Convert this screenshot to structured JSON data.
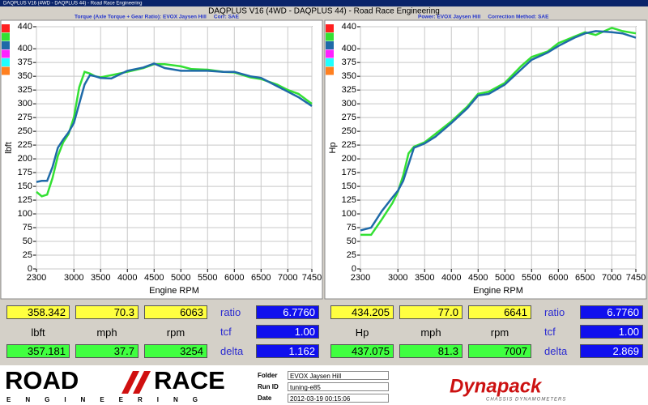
{
  "window": {
    "title": "DAQPLUS V16 (4WD - DAQPLUS 44) - Road Race Engineering"
  },
  "header": {
    "title": "DAQPLUS V16 (4WD - DAQPLUS 44) - Road Race Engineering",
    "left_info": "Torque (Axle Torque + Gear Ratio): EVOX Jaysen Hill     Corr: SAE",
    "right_info": "Power: EVOX Jaysen Hill     Correction Method: SAE"
  },
  "chart_data": [
    {
      "type": "line",
      "ylabel": "lbft",
      "xlabel": "Engine RPM",
      "x": [
        2300,
        2400,
        2500,
        2600,
        2700,
        2800,
        2900,
        3000,
        3100,
        3200,
        3300,
        3400,
        3500,
        3700,
        4000,
        4300,
        4500,
        4700,
        5000,
        5200,
        5500,
        5800,
        6000,
        6300,
        6500,
        6800,
        7000,
        7200,
        7450
      ],
      "series": [
        {
          "color": "#33e033",
          "values": [
            140,
            132,
            135,
            165,
            205,
            230,
            245,
            275,
            330,
            358,
            355,
            350,
            348,
            352,
            358,
            365,
            372,
            372,
            368,
            363,
            362,
            358,
            357,
            348,
            345,
            335,
            325,
            318,
            300
          ]
        },
        {
          "color": "#1f6aa8",
          "values": [
            158,
            160,
            160,
            185,
            220,
            235,
            248,
            265,
            300,
            335,
            352,
            350,
            347,
            346,
            360,
            366,
            373,
            365,
            360,
            360,
            360,
            358,
            358,
            350,
            347,
            332,
            322,
            312,
            296
          ]
        }
      ],
      "xlim": [
        2300,
        7450
      ],
      "ylim": [
        0,
        440
      ],
      "xticks": [
        2300,
        3000,
        3500,
        4000,
        4500,
        5000,
        5500,
        6000,
        6500,
        7000,
        7450
      ],
      "yticks": [
        0,
        25,
        50,
        75,
        100,
        125,
        150,
        175,
        200,
        225,
        250,
        275,
        300,
        325,
        350,
        375,
        400,
        440
      ],
      "grid": true
    },
    {
      "type": "line",
      "ylabel": "Hp",
      "xlabel": "Engine RPM",
      "x": [
        2300,
        2500,
        2700,
        2900,
        3000,
        3100,
        3200,
        3300,
        3500,
        3700,
        4000,
        4300,
        4500,
        4700,
        5000,
        5300,
        5500,
        5800,
        6000,
        6300,
        6500,
        6700,
        7000,
        7200,
        7450
      ],
      "series": [
        {
          "color": "#33e033",
          "values": [
            62,
            62,
            90,
            120,
            140,
            170,
            210,
            222,
            230,
            245,
            268,
            295,
            318,
            322,
            338,
            368,
            385,
            395,
            410,
            422,
            430,
            425,
            438,
            432,
            428
          ]
        },
        {
          "color": "#1f6aa8",
          "values": [
            70,
            75,
            105,
            130,
            142,
            160,
            190,
            220,
            228,
            240,
            265,
            292,
            315,
            318,
            335,
            362,
            380,
            393,
            405,
            420,
            428,
            432,
            430,
            428,
            420
          ]
        }
      ],
      "xlim": [
        2300,
        7450
      ],
      "ylim": [
        0,
        440
      ],
      "xticks": [
        2300,
        3000,
        3500,
        4000,
        4500,
        5000,
        5500,
        6000,
        6500,
        7000,
        7450
      ],
      "yticks": [
        0,
        25,
        50,
        75,
        100,
        125,
        150,
        175,
        200,
        225,
        250,
        275,
        300,
        325,
        350,
        375,
        400,
        440
      ],
      "grid": true
    }
  ],
  "readouts": [
    {
      "top": [
        "358.342",
        "70.3",
        "6063"
      ],
      "units": [
        "lbft",
        "mph",
        "rpm"
      ],
      "bottom": [
        "357.181",
        "37.7",
        "3254"
      ],
      "params": [
        {
          "label": "ratio",
          "value": "6.7760"
        },
        {
          "label": "tcf",
          "value": "1.00"
        },
        {
          "label": "delta",
          "value": "1.162"
        }
      ]
    },
    {
      "top": [
        "434.205",
        "77.0",
        "6641"
      ],
      "units": [
        "Hp",
        "mph",
        "rpm"
      ],
      "bottom": [
        "437.075",
        "81.3",
        "7007"
      ],
      "params": [
        {
          "label": "ratio",
          "value": "6.7760"
        },
        {
          "label": "tcf",
          "value": "1.00"
        },
        {
          "label": "delta",
          "value": "2.869"
        }
      ]
    }
  ],
  "footer": {
    "logo_left": "ROAD",
    "logo_right": "RACE",
    "logo_sub": "ENGINEERING",
    "fields": [
      {
        "label": "Folder",
        "value": "EVOX Jaysen Hill"
      },
      {
        "label": "Run ID",
        "value": "tuning-e85"
      },
      {
        "label": "Date",
        "value": "2012-03-19 00:15:06"
      }
    ],
    "brand": "Dynapack",
    "brand_sub": "CHASSIS DYNAMOMETERS"
  }
}
